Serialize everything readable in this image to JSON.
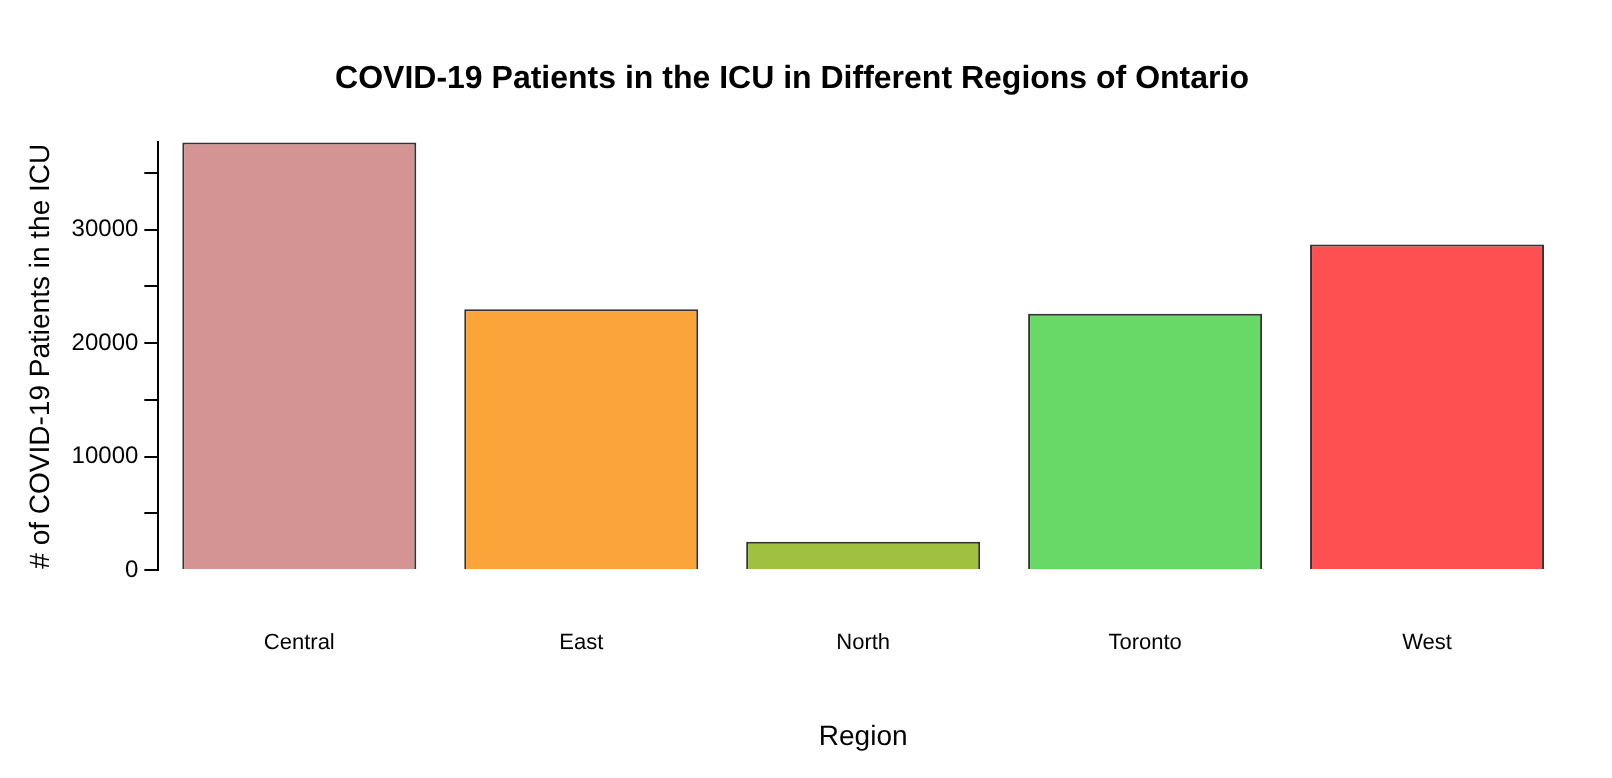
{
  "chart_data": {
    "type": "bar",
    "title": "COVID-19 Patients in the ICU in Different Regions of Ontario",
    "xlabel": "Region",
    "ylabel": "# of COVID-19 Patients in the ICU",
    "categories": [
      "Central",
      "East",
      "North",
      "Toronto",
      "West"
    ],
    "values": [
      37700,
      23000,
      2500,
      22600,
      28700
    ],
    "colors": [
      "#d59494",
      "#fba43a",
      "#a0c040",
      "#68d966",
      "#fe5050"
    ],
    "ylim": [
      0,
      37700
    ],
    "yticks": [
      0,
      {
        "value": 5000,
        "label": null
      },
      10000,
      {
        "value": 15000,
        "label": null
      },
      20000,
      {
        "value": 25000,
        "label": null
      },
      30000,
      {
        "value": 35000,
        "label": null
      }
    ],
    "grid": false,
    "legend": false
  }
}
